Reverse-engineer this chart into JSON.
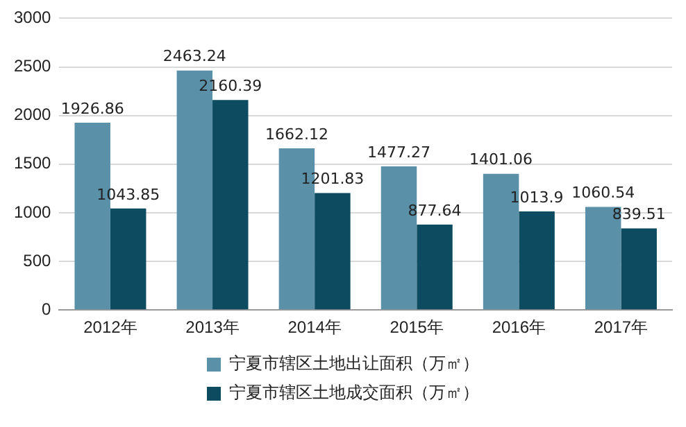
{
  "chart_data": {
    "type": "bar",
    "categories": [
      "2012年",
      "2013年",
      "2014年",
      "2015年",
      "2016年",
      "2017年"
    ],
    "series": [
      {
        "name": "宁夏市辖区土地出让面积（万㎡）",
        "color": "#5a91a8",
        "values": [
          1926.86,
          2463.24,
          1662.12,
          1477.27,
          1401.06,
          1060.54
        ]
      },
      {
        "name": "宁夏市辖区土地成交面积（万㎡）",
        "color": "#0d4b61",
        "values": [
          1043.85,
          2160.39,
          1201.83,
          877.64,
          1013.9,
          839.51
        ]
      }
    ],
    "ylim": [
      0,
      3000
    ],
    "yticks": [
      0,
      500,
      1000,
      1500,
      2000,
      2500,
      3000
    ],
    "grid": "y",
    "legend": "bottom",
    "data_labels": true
  }
}
